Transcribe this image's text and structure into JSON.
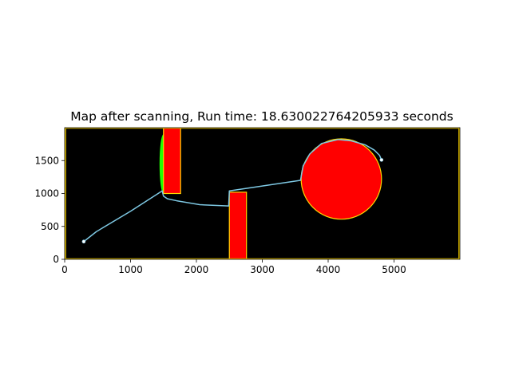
{
  "chart_data": {
    "type": "line",
    "title": "Map after scanning, Run time: 18.630022764205933 seconds",
    "xlabel": "",
    "ylabel": "",
    "xlim": [
      0,
      6000
    ],
    "ylim": [
      0,
      2000
    ],
    "xticks": [
      0,
      1000,
      2000,
      3000,
      4000,
      5000
    ],
    "xtick_labels": [
      "0",
      "1000",
      "2000",
      "3000",
      "4000",
      "5000"
    ],
    "yticks": [
      0,
      500,
      1000,
      1500
    ],
    "ytick_labels": [
      "0",
      "500",
      "1000",
      "1500"
    ],
    "grid": false,
    "background_color": "#000000",
    "border_color": "#ffd700",
    "obstacle_fill": "#ff0000",
    "obstacle_edge": "#ffd700",
    "scanned_color": "#22ff00",
    "path_color": "#7ec8e3",
    "rectangles": [
      {
        "x": 1500,
        "y": 1000,
        "width": 260,
        "height": 1000
      },
      {
        "x": 2500,
        "y": 0,
        "width": 260,
        "height": 1020
      }
    ],
    "circles": [
      {
        "cx": 4200,
        "cy": 1220,
        "r": 610
      }
    ],
    "scanned_regions": [
      {
        "x_left": 1440,
        "x_right": 1500,
        "y_bottom": 1000,
        "y_top": 1900
      }
    ],
    "path": {
      "x": [
        290,
        480,
        1000,
        1480,
        1500,
        1560,
        1700,
        2050,
        2490,
        2500,
        3580,
        3620,
        3720,
        3900,
        4150,
        4350,
        4560,
        4700,
        4780,
        4810
      ],
      "y": [
        270,
        420,
        730,
        1040,
        960,
        920,
        890,
        830,
        810,
        1040,
        1200,
        1420,
        1600,
        1760,
        1820,
        1800,
        1740,
        1660,
        1580,
        1510
      ]
    },
    "markers": [
      {
        "x": 290,
        "y": 270
      },
      {
        "x": 4810,
        "y": 1510
      }
    ]
  }
}
